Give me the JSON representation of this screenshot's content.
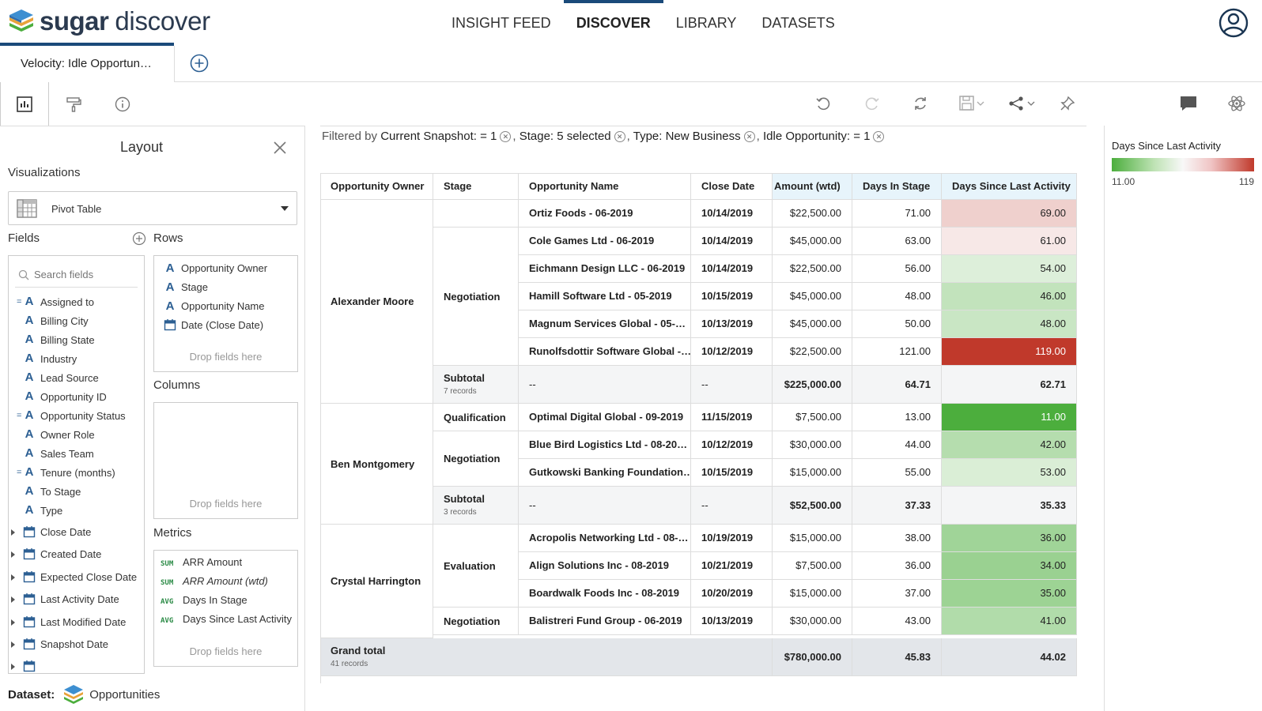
{
  "app": {
    "brand_bold": "sugar",
    "brand_light": "discover"
  },
  "nav": [
    "INSIGHT FEED",
    "DISCOVER",
    "LIBRARY",
    "DATASETS"
  ],
  "nav_active": "DISCOVER",
  "tab": {
    "label": "Velocity: Idle Opportun…"
  },
  "panel": {
    "title": "Layout",
    "visualizations_label": "Visualizations",
    "viz_selected": "Pivot Table",
    "fields_label": "Fields",
    "rows_label": "Rows",
    "columns_label": "Columns",
    "metrics_label": "Metrics",
    "search_placeholder": "Search fields",
    "fields": [
      {
        "label": "Assigned to",
        "kind": "text",
        "eq": true
      },
      {
        "label": "Billing City",
        "kind": "text"
      },
      {
        "label": "Billing State",
        "kind": "text"
      },
      {
        "label": "Industry",
        "kind": "text"
      },
      {
        "label": "Lead Source",
        "kind": "text"
      },
      {
        "label": "Opportunity ID",
        "kind": "text"
      },
      {
        "label": "Opportunity Status",
        "kind": "text",
        "eq": true
      },
      {
        "label": "Owner Role",
        "kind": "text"
      },
      {
        "label": "Sales Team",
        "kind": "text"
      },
      {
        "label": "Tenure (months)",
        "kind": "text",
        "eq": true
      },
      {
        "label": "To Stage",
        "kind": "text"
      },
      {
        "label": "Type",
        "kind": "text"
      },
      {
        "label": "Close Date",
        "kind": "date"
      },
      {
        "label": "Created Date",
        "kind": "date"
      },
      {
        "label": "Expected Close Date",
        "kind": "date"
      },
      {
        "label": "Last Activity Date",
        "kind": "date"
      },
      {
        "label": "Last Modified Date",
        "kind": "date"
      },
      {
        "label": "Snapshot Date",
        "kind": "date"
      }
    ],
    "rows": [
      {
        "label": "Opportunity Owner",
        "kind": "text"
      },
      {
        "label": "Stage",
        "kind": "text"
      },
      {
        "label": "Opportunity Name",
        "kind": "text"
      },
      {
        "label": "Date (Close Date)",
        "kind": "date"
      }
    ],
    "drop_text": "Drop fields here",
    "metrics": [
      {
        "agg": "SUM",
        "label": "ARR Amount",
        "italic": false
      },
      {
        "agg": "SUM",
        "label": "ARR Amount (wtd)",
        "italic": true
      },
      {
        "agg": "AVG",
        "label": "Days In Stage",
        "italic": false
      },
      {
        "agg": "AVG",
        "label": "Days Since Last Activity",
        "italic": false
      }
    ],
    "dataset_label": "Dataset:",
    "dataset_value": "Opportunities"
  },
  "filter": {
    "prefix": "Filtered by",
    "items": [
      "Current Snapshot: = 1",
      "Stage: 5 selected",
      "Type: New Business",
      "Idle Opportunity: = 1"
    ]
  },
  "table": {
    "headers": [
      "Opportunity Owner",
      "Stage",
      "Opportunity Name",
      "Close Date",
      "Amount (wtd)",
      "Days In Stage",
      "Days Since Last Activity"
    ],
    "owners": [
      "Alexander Moore",
      "Ben Montgomery",
      "Crystal Harrington"
    ],
    "stages": [
      "Negotiation",
      "Qualification",
      "Negotiation",
      "Evaluation",
      "Negotiation"
    ],
    "rows": [
      {
        "name": "Ortiz Foods - 06-2019",
        "date": "10/14/2019",
        "amount": "$22,500.00",
        "days_stage": "71.00",
        "days_activity": "69.00",
        "v": 69
      },
      {
        "name": "Cole Games Ltd - 06-2019",
        "date": "10/14/2019",
        "amount": "$45,000.00",
        "days_stage": "63.00",
        "days_activity": "61.00",
        "v": 61
      },
      {
        "name": "Eichmann Design LLC - 06-2019",
        "date": "10/14/2019",
        "amount": "$22,500.00",
        "days_stage": "56.00",
        "days_activity": "54.00",
        "v": 54
      },
      {
        "name": "Hamill Software Ltd - 05-2019",
        "date": "10/15/2019",
        "amount": "$45,000.00",
        "days_stage": "48.00",
        "days_activity": "46.00",
        "v": 46
      },
      {
        "name": "Magnum Services Global - 05-…",
        "date": "10/13/2019",
        "amount": "$45,000.00",
        "days_stage": "50.00",
        "days_activity": "48.00",
        "v": 48
      },
      {
        "name": "Runolfsdottir Software Global -…",
        "date": "10/12/2019",
        "amount": "$22,500.00",
        "days_stage": "121.00",
        "days_activity": "119.00",
        "v": 119
      },
      {
        "name": "Optimal Digital Global - 09-2019",
        "date": "11/15/2019",
        "amount": "$7,500.00",
        "days_stage": "13.00",
        "days_activity": "11.00",
        "v": 11
      },
      {
        "name": "Blue Bird Logistics Ltd - 08-20…",
        "date": "10/12/2019",
        "amount": "$30,000.00",
        "days_stage": "44.00",
        "days_activity": "42.00",
        "v": 42
      },
      {
        "name": "Gutkowski Banking Foundation…",
        "date": "10/15/2019",
        "amount": "$15,000.00",
        "days_stage": "55.00",
        "days_activity": "53.00",
        "v": 53
      },
      {
        "name": "Acropolis Networking Ltd - 08-…",
        "date": "10/19/2019",
        "amount": "$15,000.00",
        "days_stage": "38.00",
        "days_activity": "36.00",
        "v": 36
      },
      {
        "name": "Align Solutions Inc - 08-2019",
        "date": "10/21/2019",
        "amount": "$7,500.00",
        "days_stage": "36.00",
        "days_activity": "34.00",
        "v": 34
      },
      {
        "name": "Boardwalk Foods Inc - 08-2019",
        "date": "10/20/2019",
        "amount": "$15,000.00",
        "days_stage": "37.00",
        "days_activity": "35.00",
        "v": 35
      },
      {
        "name": "Balistreri Fund Group - 06-2019",
        "date": "10/13/2019",
        "amount": "$30,000.00",
        "days_stage": "43.00",
        "days_activity": "41.00",
        "v": 41
      }
    ],
    "subtotals": [
      {
        "label": "Subtotal",
        "records": "7 records",
        "name": "--",
        "date": "--",
        "amount": "$225,000.00",
        "days_stage": "64.71",
        "days_activity": "62.71"
      },
      {
        "label": "Subtotal",
        "records": "3 records",
        "name": "--",
        "date": "--",
        "amount": "$52,500.00",
        "days_stage": "37.33",
        "days_activity": "35.33"
      }
    ],
    "grand_total": {
      "label": "Grand total",
      "records": "41 records",
      "amount": "$780,000.00",
      "days_stage": "45.83",
      "days_activity": "44.02"
    }
  },
  "legend": {
    "title": "Days Since Last Activity",
    "min": "11.00",
    "max": "119",
    "min_value": 11,
    "max_value": 119,
    "low_color": "#4cae3d",
    "high_color": "#c0392b"
  }
}
